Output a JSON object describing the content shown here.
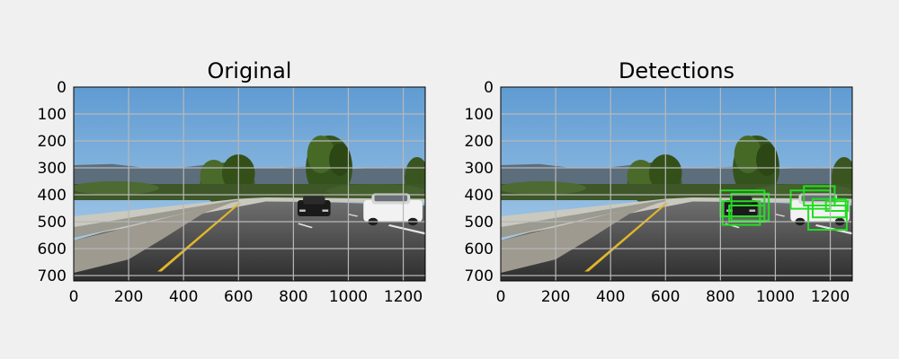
{
  "figure": {
    "background": "#f0f0f0",
    "grid_color": "#b8b8b8",
    "axis_extent": {
      "x": [
        0,
        1280
      ],
      "y": [
        0,
        720
      ]
    },
    "x_ticks": [
      "0",
      "200",
      "400",
      "600",
      "800",
      "1000",
      "1200"
    ],
    "y_ticks": [
      "0",
      "100",
      "200",
      "300",
      "400",
      "500",
      "600",
      "700"
    ]
  },
  "panels": [
    {
      "title": "Original",
      "show_detections": false
    },
    {
      "title": "Detections",
      "show_detections": true
    }
  ],
  "detections": {
    "color": "#22dd22",
    "boxes_image_coords": [
      [
        800,
        384,
        960,
        480
      ],
      [
        840,
        396,
        976,
        496
      ],
      [
        808,
        424,
        944,
        512
      ],
      [
        832,
        440,
        960,
        500
      ],
      [
        1056,
        384,
        1200,
        452
      ],
      [
        1104,
        368,
        1216,
        440
      ],
      [
        1136,
        416,
        1256,
        484
      ],
      [
        1120,
        440,
        1260,
        530
      ],
      [
        1184,
        424,
        1264,
        460
      ]
    ]
  }
}
